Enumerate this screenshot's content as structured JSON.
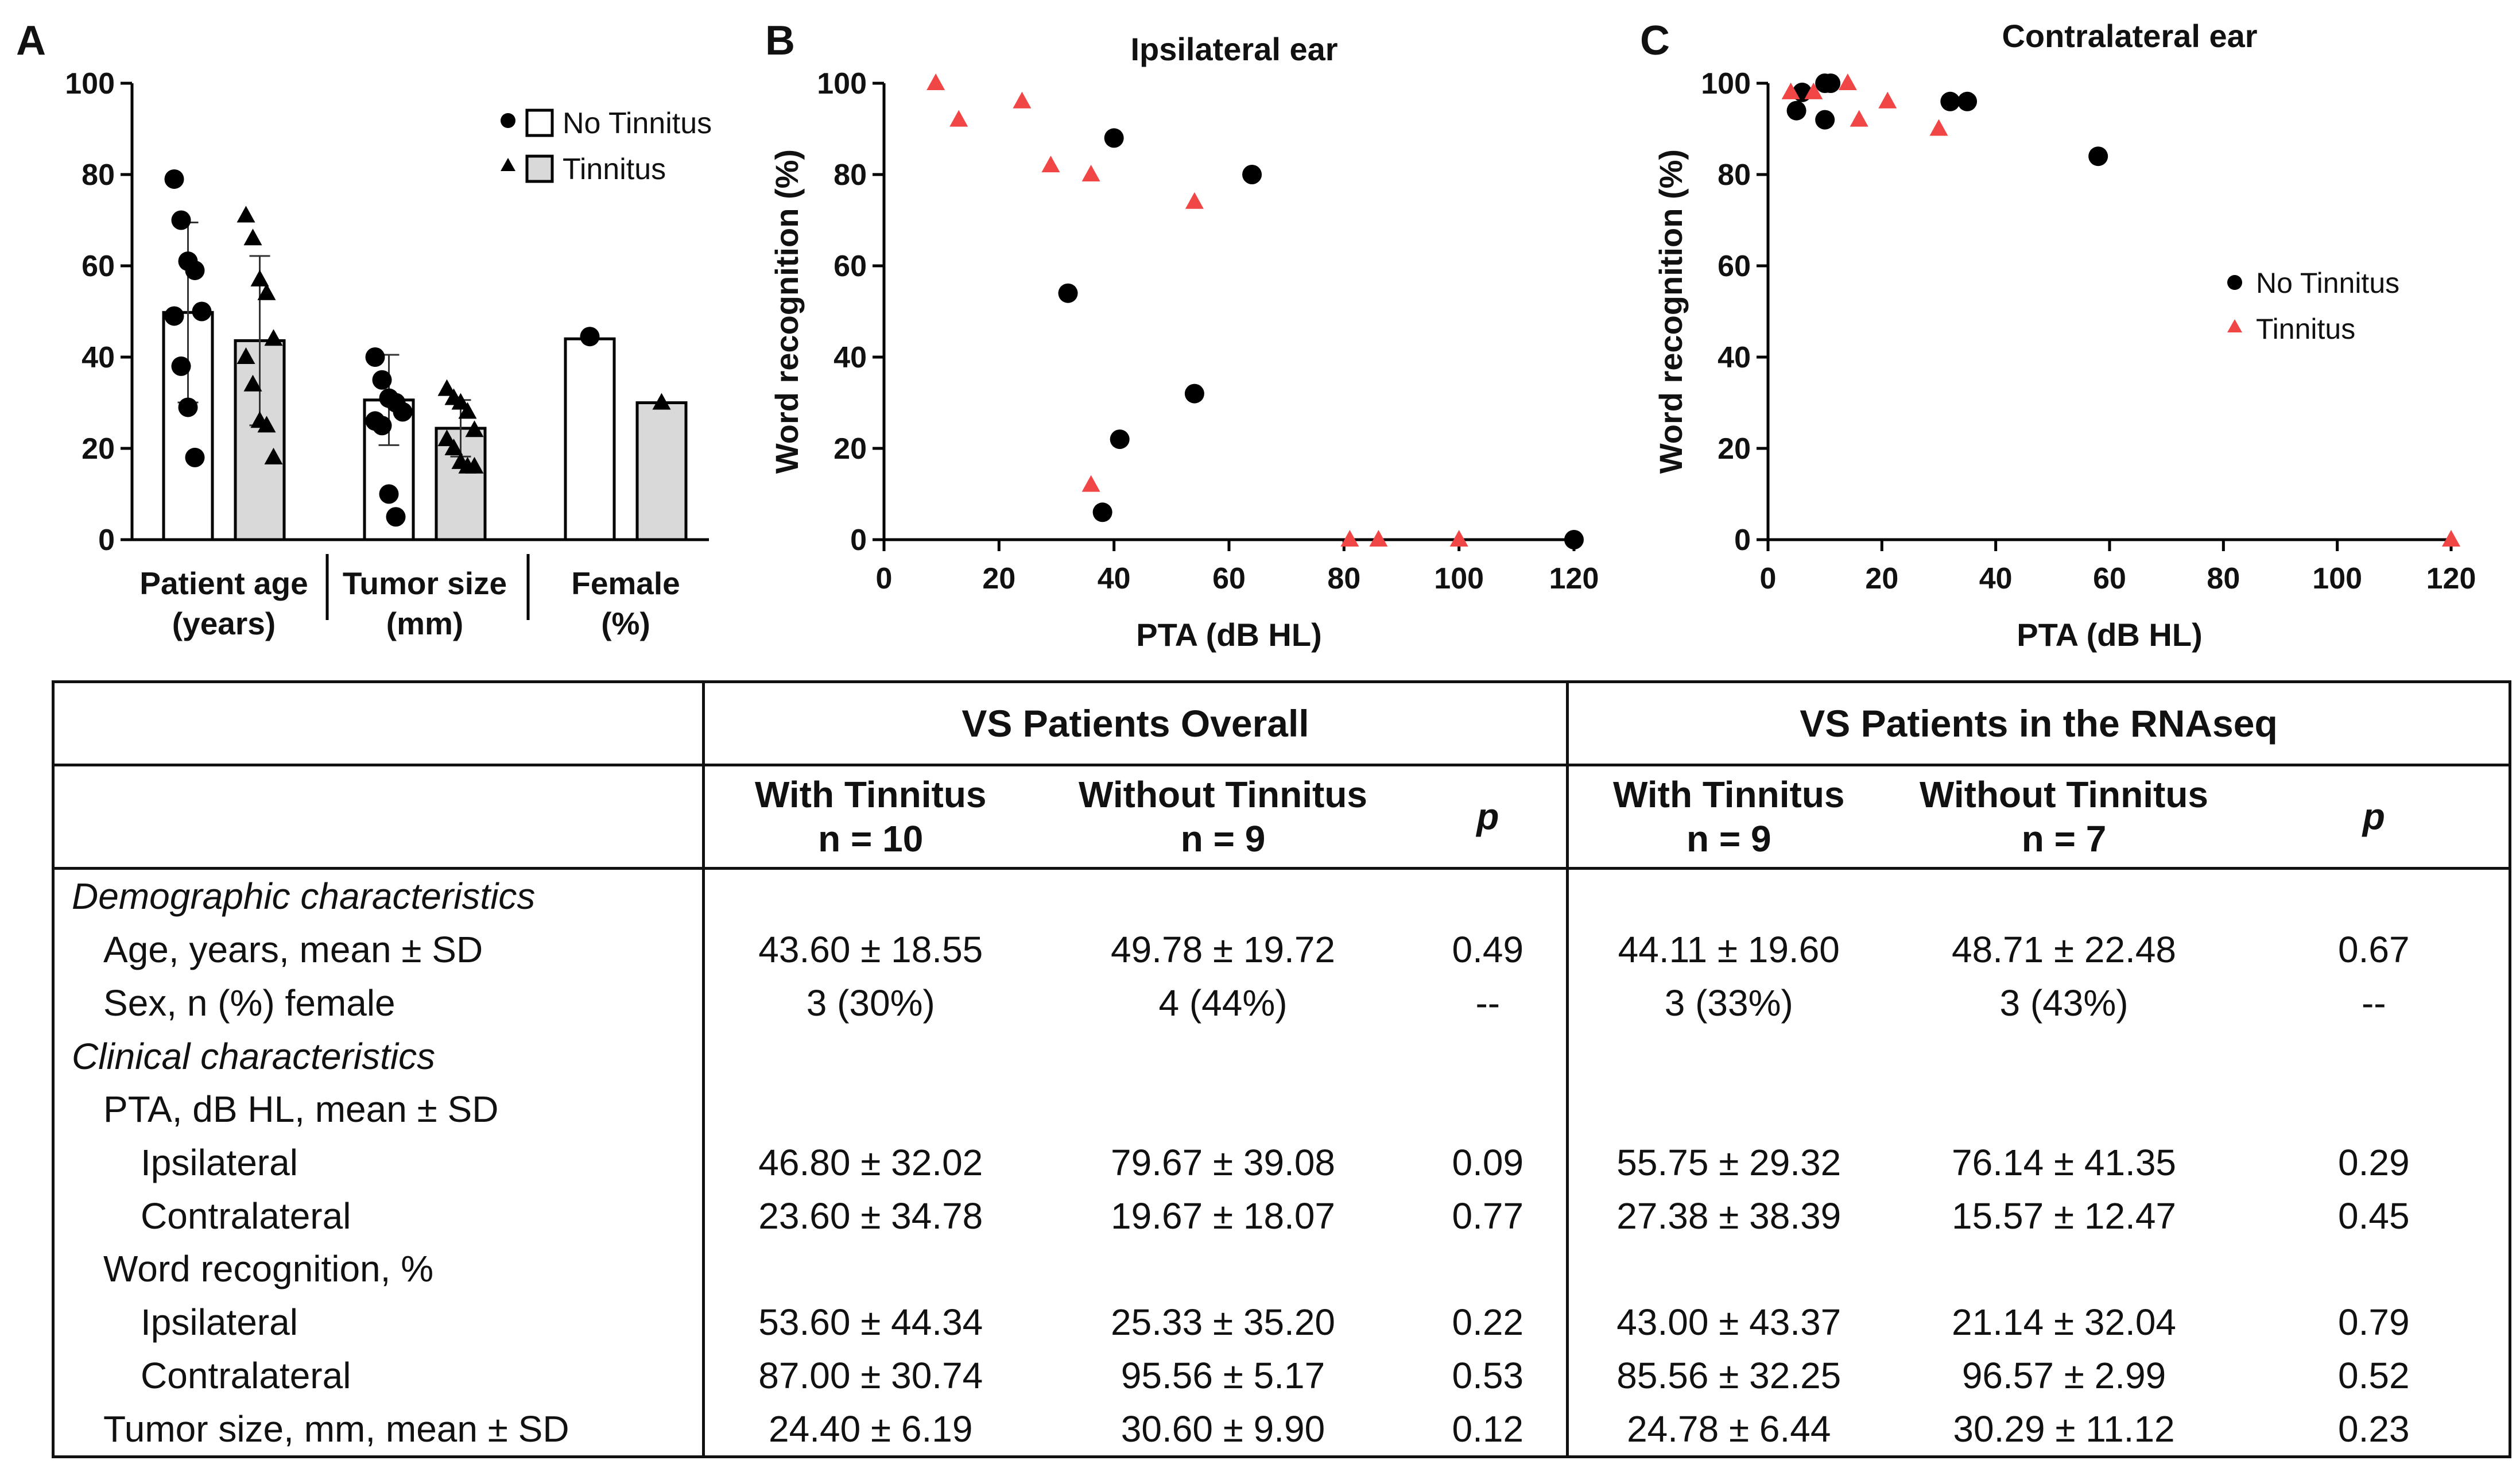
{
  "panels": {
    "A": {
      "letter": "A"
    },
    "B": {
      "letter": "B",
      "title": "Ipsilateral ear",
      "xlabel": "PTA (dB HL)",
      "ylabel": "Word recognition (%)"
    },
    "C": {
      "letter": "C",
      "title": "Contralateral ear",
      "xlabel": "PTA (dB HL)",
      "ylabel": "Word recognition (%)"
    }
  },
  "legend": {
    "no_tinnitus": "No Tinnitus",
    "tinnitus": "Tinnitus"
  },
  "colors": {
    "no_tinnitus_point": "#000000",
    "tinnitus_point": "#f04646",
    "tinnitus_bar": "#d9d9d9",
    "no_tinnitus_bar": "#ffffff"
  },
  "chart_data": [
    {
      "panel": "A",
      "type": "bar",
      "ylim": [
        0,
        100
      ],
      "yticks": [
        0,
        20,
        40,
        60,
        80,
        100
      ],
      "groups": [
        {
          "label_line1": "Patient age",
          "label_line2": "(years)",
          "bars": [
            {
              "series": "No Tinnitus",
              "mean": 49.78,
              "sd": 19.72,
              "points": [
                79,
                70,
                61,
                59,
                50,
                49,
                38,
                29,
                18
              ]
            },
            {
              "series": "Tinnitus",
              "mean": 43.6,
              "sd": 18.55,
              "points": [
                71,
                66,
                57,
                54,
                44,
                40,
                34,
                26,
                25,
                18
              ]
            }
          ]
        },
        {
          "label_line1": "Tumor size",
          "label_line2": "(mm)",
          "bars": [
            {
              "series": "No Tinnitus",
              "mean": 30.6,
              "sd": 9.9,
              "points": [
                40,
                35,
                31,
                30,
                28,
                26,
                25,
                10,
                5
              ]
            },
            {
              "series": "Tinnitus",
              "mean": 24.4,
              "sd": 6.19,
              "points": [
                33,
                31,
                30,
                28,
                24,
                22,
                20,
                17,
                16,
                16
              ]
            }
          ]
        },
        {
          "label_line1": "Female",
          "label_line2": "(%)",
          "bars": [
            {
              "series": "No Tinnitus",
              "mean": 44,
              "sd": 0,
              "points": [
                44.5
              ]
            },
            {
              "series": "Tinnitus",
              "mean": 30,
              "sd": 0,
              "points": [
                30
              ]
            }
          ]
        }
      ]
    },
    {
      "panel": "B",
      "type": "scatter",
      "title": "Ipsilateral ear",
      "xlabel": "PTA (dB HL)",
      "ylabel": "Word recognition (%)",
      "xlim": [
        0,
        120
      ],
      "ylim": [
        0,
        100
      ],
      "xticks": [
        0,
        20,
        40,
        60,
        80,
        100,
        120
      ],
      "yticks": [
        0,
        20,
        40,
        60,
        80,
        100
      ],
      "series": [
        {
          "name": "No Tinnitus",
          "marker": "circle",
          "x": [
            40,
            64,
            32,
            54,
            41,
            38,
            120
          ],
          "y": [
            88,
            80,
            54,
            32,
            22,
            6,
            0
          ]
        },
        {
          "name": "Tinnitus",
          "marker": "triangle",
          "x": [
            9,
            13,
            24,
            29,
            36,
            54,
            36,
            81,
            86,
            100
          ],
          "y": [
            100,
            92,
            96,
            82,
            80,
            74,
            12,
            0,
            0,
            0
          ]
        }
      ]
    },
    {
      "panel": "C",
      "type": "scatter",
      "title": "Contralateral ear",
      "xlabel": "PTA (dB HL)",
      "ylabel": "Word recognition (%)",
      "xlim": [
        0,
        120
      ],
      "ylim": [
        0,
        100
      ],
      "xticks": [
        0,
        20,
        40,
        60,
        80,
        100,
        120
      ],
      "yticks": [
        0,
        20,
        40,
        60,
        80,
        100
      ],
      "legend_position": "right",
      "series": [
        {
          "name": "No Tinnitus",
          "marker": "circle",
          "x": [
            5,
            6,
            10,
            11,
            10,
            32,
            35,
            58
          ],
          "y": [
            94,
            98,
            100,
            100,
            92,
            96,
            96,
            84
          ]
        },
        {
          "name": "Tinnitus",
          "marker": "triangle",
          "x": [
            4,
            8,
            14,
            16,
            21,
            30,
            120
          ],
          "y": [
            98,
            98,
            100,
            92,
            96,
            90,
            0
          ]
        }
      ]
    }
  ],
  "table": {
    "group_overall": "VS Patients Overall",
    "group_rnaseq": "VS Patients in the RNAseq",
    "cols": {
      "ov_with_1": "With Tinnitus",
      "ov_with_2": "n = 10",
      "ov_without_1": "Without Tinnitus",
      "ov_without_2": "n = 9",
      "p": "p",
      "rna_with_1": "With Tinnitus",
      "rna_with_2": "n = 9",
      "rna_without_1": "Without Tinnitus",
      "rna_without_2": "n = 7"
    },
    "rows": [
      {
        "label": "Demographic characteristics",
        "v": [
          "",
          "",
          "",
          "",
          "",
          ""
        ]
      },
      {
        "label": "Age, years, mean ± SD",
        "v": [
          "43.60 ± 18.55",
          "49.78 ± 19.72",
          "0.49",
          "44.11 ± 19.60",
          "48.71 ± 22.48",
          "0.67"
        ]
      },
      {
        "label": "Sex, n (%) female",
        "v": [
          "3 (30%)",
          "4 (44%)",
          "--",
          "3 (33%)",
          "3 (43%)",
          "--"
        ]
      },
      {
        "label": "Clinical characteristics",
        "v": [
          "",
          "",
          "",
          "",
          "",
          ""
        ]
      },
      {
        "label": "PTA, dB HL, mean ± SD",
        "v": [
          "",
          "",
          "",
          "",
          "",
          ""
        ]
      },
      {
        "label": "Ipsilateral",
        "v": [
          "46.80 ± 32.02",
          "79.67 ± 39.08",
          "0.09",
          "55.75 ± 29.32",
          "76.14 ± 41.35",
          "0.29"
        ]
      },
      {
        "label": "Contralateral",
        "v": [
          "23.60 ± 34.78",
          "19.67 ± 18.07",
          "0.77",
          "27.38 ± 38.39",
          "15.57 ± 12.47",
          "0.45"
        ]
      },
      {
        "label": "Word recognition, %",
        "v": [
          "",
          "",
          "",
          "",
          "",
          ""
        ]
      },
      {
        "label": "Ipsilateral",
        "v": [
          "53.60 ± 44.34",
          "25.33 ± 35.20",
          "0.22",
          "43.00 ± 43.37",
          "21.14 ± 32.04",
          "0.79"
        ]
      },
      {
        "label": "Contralateral",
        "v": [
          "87.00 ± 30.74",
          "95.56 ± 5.17",
          "0.53",
          "85.56 ± 32.25",
          "96.57 ± 2.99",
          "0.52"
        ]
      },
      {
        "label": "Tumor size, mm, mean ± SD",
        "v": [
          "24.40 ± 6.19",
          "30.60 ± 9.90",
          "0.12",
          "24.78 ± 6.44",
          "30.29 ± 11.12",
          "0.23"
        ]
      }
    ]
  }
}
